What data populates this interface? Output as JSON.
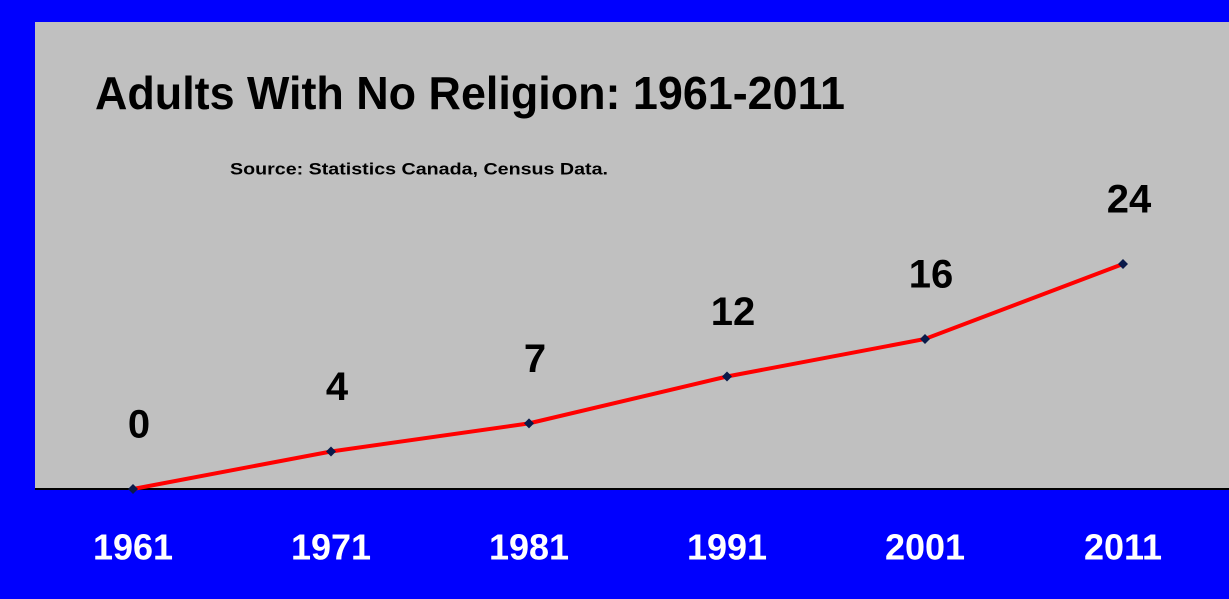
{
  "chart_data": {
    "type": "line",
    "title": "Adults With No Religion: 1961-2011",
    "subtitle": "Source: Statistics Canada, Census Data.",
    "categories": [
      "1961",
      "1971",
      "1981",
      "1991",
      "2001",
      "2011"
    ],
    "series": [
      {
        "name": "Adults With No Religion",
        "color": "#ff0000",
        "values": [
          0,
          4,
          7,
          12,
          16,
          24
        ]
      }
    ],
    "marker_color": "#0a1a4a"
  }
}
